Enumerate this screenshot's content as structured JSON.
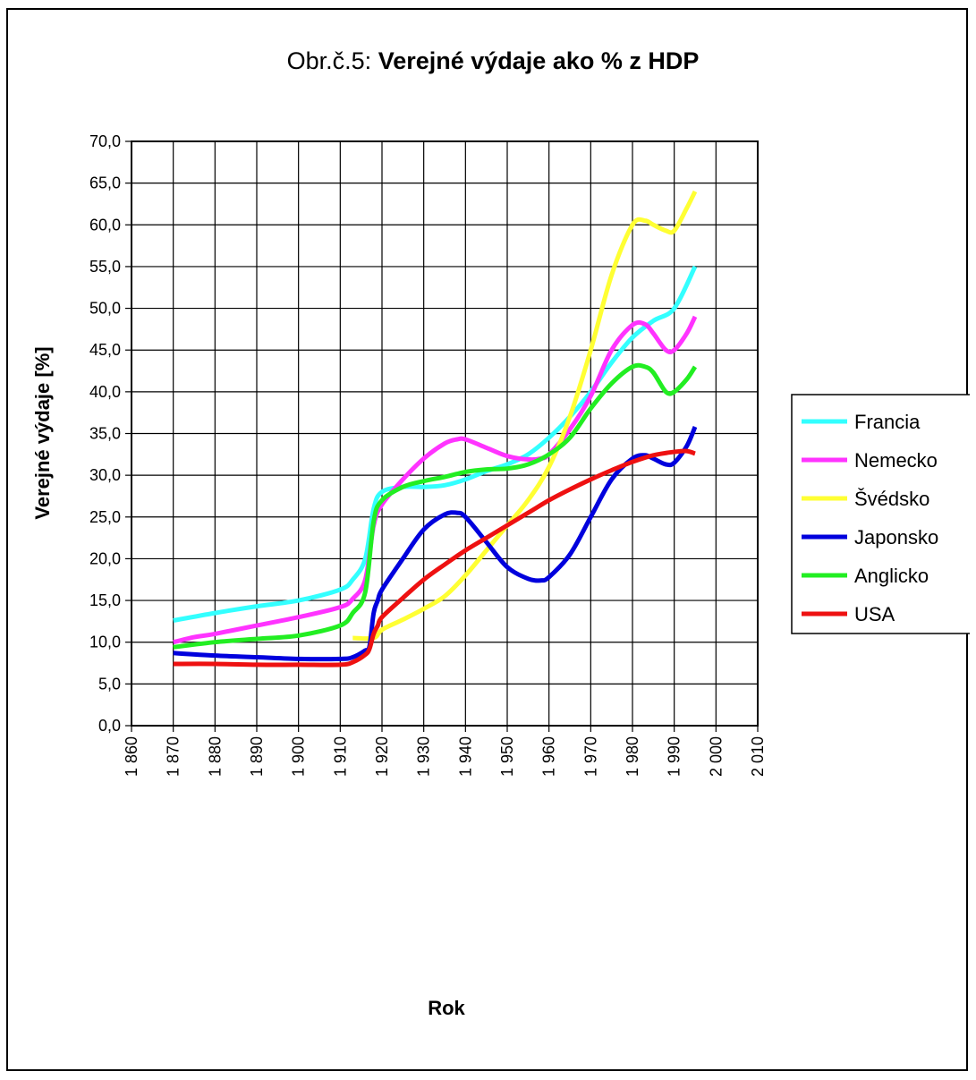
{
  "chart_data": {
    "type": "line",
    "title_prefix": "Obr.č.5:",
    "title_main": "Verejné výdaje ako % z HDP",
    "xlabel": "Rok",
    "ylabel": "Verejné výdaje  [%]",
    "xlim": [
      1860,
      2010
    ],
    "ylim": [
      0,
      70
    ],
    "x_ticks": [
      "1 860",
      "1 870",
      "1 880",
      "1 890",
      "1 900",
      "1 910",
      "1 920",
      "1 930",
      "1 940",
      "1 950",
      "1 960",
      "1 970",
      "1 980",
      "1 990",
      "2 000",
      "2 010"
    ],
    "y_ticks": [
      "0,0",
      "5,0",
      "10,0",
      "15,0",
      "20,0",
      "25,0",
      "30,0",
      "35,0",
      "40,0",
      "45,0",
      "50,0",
      "55,0",
      "60,0",
      "65,0",
      "70,0"
    ],
    "grid": true,
    "legend_position": "right",
    "series": [
      {
        "name": "Francia",
        "color": "#33ffff",
        "x": [
          1870,
          1880,
          1890,
          1900,
          1910,
          1913,
          1916,
          1918,
          1920,
          1925,
          1930,
          1935,
          1940,
          1945,
          1950,
          1955,
          1960,
          1965,
          1970,
          1975,
          1980,
          1985,
          1990,
          1995
        ],
        "y": [
          12.6,
          13.5,
          14.3,
          15.0,
          16.3,
          17.5,
          20.0,
          26.0,
          28.0,
          28.6,
          28.6,
          28.8,
          29.5,
          30.5,
          31.3,
          32.5,
          34.5,
          37.0,
          40.0,
          43.5,
          46.5,
          48.5,
          50.0,
          55.0
        ]
      },
      {
        "name": "Nemecko",
        "color": "#ff33ff",
        "x": [
          1870,
          1875,
          1880,
          1890,
          1900,
          1910,
          1913,
          1916,
          1918,
          1920,
          1925,
          1930,
          1935,
          1938,
          1940,
          1945,
          1950,
          1955,
          1958,
          1960,
          1965,
          1970,
          1975,
          1980,
          1983,
          1985,
          1988,
          1990,
          1993,
          1995
        ],
        "y": [
          10.0,
          10.6,
          11.0,
          12.0,
          13.0,
          14.2,
          15.2,
          17.5,
          24.0,
          26.5,
          29.5,
          32.0,
          33.8,
          34.3,
          34.3,
          33.3,
          32.3,
          31.9,
          32.0,
          32.5,
          35.5,
          39.5,
          45.0,
          48.0,
          48.1,
          47.0,
          45.0,
          45.0,
          47.0,
          49.0
        ]
      },
      {
        "name": "Švédsko",
        "color": "#ffff33",
        "x": [
          1913,
          1918,
          1920,
          1925,
          1930,
          1935,
          1940,
          1945,
          1950,
          1955,
          1960,
          1965,
          1970,
          1975,
          1980,
          1983,
          1985,
          1988,
          1990,
          1993,
          1995
        ],
        "y": [
          10.5,
          10.5,
          11.5,
          12.7,
          14.0,
          15.5,
          18.0,
          21.0,
          24.0,
          27.0,
          31.0,
          37.0,
          45.0,
          54.0,
          60.0,
          60.5,
          60.0,
          59.3,
          59.3,
          62.0,
          64.0
        ]
      },
      {
        "name": "Japonsko",
        "color": "#0000dd",
        "x": [
          1870,
          1880,
          1890,
          1900,
          1910,
          1913,
          1916,
          1917,
          1918,
          1919,
          1920,
          1925,
          1930,
          1935,
          1938,
          1940,
          1945,
          1950,
          1955,
          1958,
          1960,
          1965,
          1970,
          1975,
          1980,
          1983,
          1985,
          1988,
          1990,
          1993,
          1995
        ],
        "y": [
          8.7,
          8.4,
          8.2,
          8.0,
          8.0,
          8.2,
          9.0,
          9.5,
          13.5,
          15.0,
          16.3,
          20.0,
          23.5,
          25.3,
          25.5,
          25.0,
          22.0,
          19.0,
          17.6,
          17.4,
          17.8,
          20.5,
          25.0,
          29.5,
          32.0,
          32.4,
          32.0,
          31.3,
          31.5,
          33.5,
          35.8
        ]
      },
      {
        "name": "Anglicko",
        "color": "#22ee22",
        "x": [
          1870,
          1880,
          1890,
          1900,
          1910,
          1913,
          1916,
          1918,
          1920,
          1925,
          1930,
          1935,
          1940,
          1945,
          1950,
          1955,
          1960,
          1965,
          1970,
          1975,
          1980,
          1983,
          1985,
          1988,
          1990,
          1993,
          1995
        ],
        "y": [
          9.4,
          10.0,
          10.4,
          10.8,
          12.0,
          13.5,
          16.0,
          24.5,
          27.0,
          28.6,
          29.3,
          29.8,
          30.4,
          30.7,
          30.8,
          31.3,
          32.5,
          34.5,
          38.0,
          41.0,
          43.0,
          43.0,
          42.3,
          40.0,
          40.0,
          41.5,
          43.0
        ]
      },
      {
        "name": "USA",
        "color": "#ee1111",
        "x": [
          1870,
          1880,
          1890,
          1900,
          1910,
          1913,
          1916,
          1917,
          1918,
          1919,
          1920,
          1925,
          1930,
          1935,
          1940,
          1945,
          1950,
          1955,
          1960,
          1965,
          1970,
          1975,
          1980,
          1985,
          1990,
          1993,
          1995
        ],
        "y": [
          7.4,
          7.4,
          7.3,
          7.3,
          7.3,
          7.6,
          8.5,
          9.2,
          11.0,
          12.0,
          13.0,
          15.3,
          17.5,
          19.3,
          21.0,
          22.5,
          24.0,
          25.5,
          27.0,
          28.3,
          29.5,
          30.6,
          31.6,
          32.4,
          32.8,
          32.9,
          32.6
        ]
      }
    ]
  }
}
